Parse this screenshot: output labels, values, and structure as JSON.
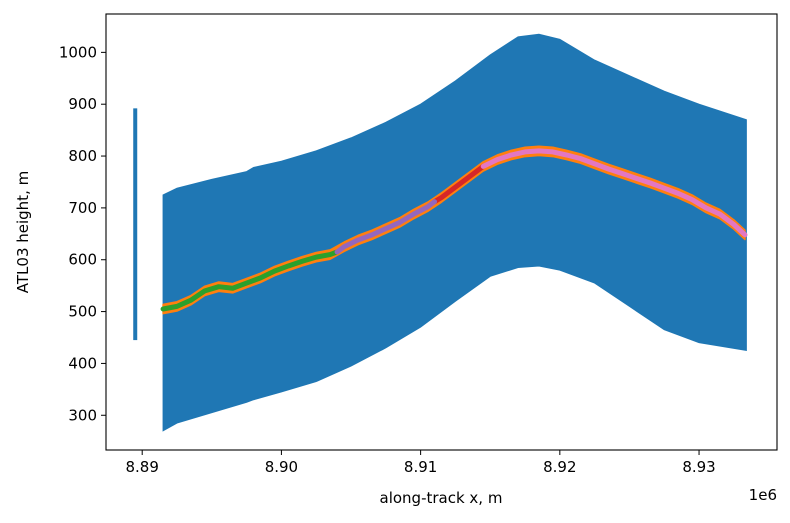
{
  "chart_data": {
    "type": "scatter",
    "title": "",
    "xlabel": "along-track x, m",
    "ylabel": "ATL03 height, m",
    "x_offset_label": "1e6",
    "xlim": [
      8.8874,
      8.9356
    ],
    "ylim": [
      233,
      1074
    ],
    "x_ticks": [
      8.89,
      8.9,
      8.91,
      8.92,
      8.93
    ],
    "x_tick_labels": [
      "8.89",
      "8.90",
      "8.91",
      "8.92",
      "8.93"
    ],
    "y_ticks": [
      300,
      400,
      500,
      600,
      700,
      800,
      900,
      1000
    ],
    "y_tick_labels": [
      "300",
      "400",
      "500",
      "600",
      "700",
      "800",
      "900",
      "1000"
    ],
    "grid": false,
    "legend": false,
    "series": [
      {
        "color": "#1f77b4",
        "kind": "photon-cloud",
        "x": [
          8.8915,
          8.8925,
          8.895,
          8.8975,
          8.898,
          8.9,
          8.9025,
          8.905,
          8.9075,
          8.91,
          8.9125,
          8.915,
          8.917,
          8.9185,
          8.92,
          8.9225,
          8.925,
          8.9275,
          8.93,
          8.9334
        ],
        "upper": [
          725,
          738,
          755,
          770,
          778,
          790,
          810,
          835,
          865,
          900,
          945,
          995,
          1030,
          1035,
          1025,
          985,
          955,
          925,
          900,
          870
        ],
        "lower": [
          270,
          285,
          305,
          325,
          330,
          345,
          365,
          395,
          430,
          470,
          520,
          568,
          585,
          588,
          580,
          555,
          510,
          465,
          440,
          425
        ]
      },
      {
        "color": "#1f77b4",
        "kind": "isolated-strip",
        "x": [
          8.8895
        ],
        "upper": [
          892
        ],
        "lower": [
          445
        ]
      },
      {
        "color": "#ff7f0e",
        "kind": "surface-band",
        "x": [
          8.8915,
          8.8925,
          8.8935,
          8.8945,
          8.8955,
          8.8965,
          8.8975,
          8.8985,
          8.8995,
          8.9005,
          8.9015,
          8.9025,
          8.9035,
          8.9045,
          8.9055,
          8.9065,
          8.9075,
          8.9085,
          8.9095,
          8.9105,
          8.9115,
          8.9125,
          8.9135,
          8.9145,
          8.9155,
          8.9165,
          8.9175,
          8.9185,
          8.9195,
          8.9205,
          8.9215,
          8.9225,
          8.9235,
          8.9245,
          8.9255,
          8.9265,
          8.9275,
          8.9285,
          8.9295,
          8.9305,
          8.9315,
          8.9325,
          8.9333
        ],
        "y": [
          505,
          510,
          522,
          540,
          548,
          545,
          555,
          565,
          578,
          588,
          597,
          605,
          610,
          625,
          638,
          648,
          660,
          672,
          688,
          702,
          720,
          740,
          760,
          780,
          793,
          802,
          808,
          810,
          808,
          802,
          795,
          785,
          775,
          766,
          757,
          748,
          738,
          728,
          716,
          700,
          688,
          668,
          648
        ],
        "halfwidth": 9
      },
      {
        "color": "#2ca02c",
        "kind": "segment",
        "x": [
          8.8915,
          8.8925,
          8.8935,
          8.8945,
          8.8955,
          8.8965,
          8.8975,
          8.8985,
          8.8995,
          8.9005,
          8.9015,
          8.9025,
          8.9035,
          8.904
        ],
        "y": [
          505,
          510,
          522,
          540,
          548,
          545,
          555,
          565,
          578,
          588,
          597,
          605,
          610,
          615
        ]
      },
      {
        "color": "#d62728",
        "kind": "segment",
        "x": [
          8.911,
          8.9115,
          8.9125,
          8.9135,
          8.9145
        ],
        "y": [
          712,
          720,
          740,
          760,
          780
        ]
      },
      {
        "color": "#9467bd",
        "kind": "segment",
        "x": [
          8.904,
          8.9045,
          8.9055,
          8.9065,
          8.9075,
          8.9085,
          8.9095,
          8.9105,
          8.911
        ],
        "y": [
          615,
          625,
          638,
          648,
          660,
          672,
          688,
          702,
          712
        ]
      },
      {
        "color": "#e377c2",
        "kind": "segment",
        "x": [
          8.9145,
          8.9155,
          8.9165,
          8.9175,
          8.9185,
          8.9195,
          8.9205,
          8.9215,
          8.9225,
          8.9235,
          8.9245,
          8.9255,
          8.9265,
          8.9275,
          8.9285,
          8.9295,
          8.9305,
          8.9315,
          8.9325,
          8.9333
        ],
        "y": [
          780,
          793,
          802,
          808,
          810,
          808,
          802,
          795,
          785,
          775,
          766,
          757,
          748,
          738,
          728,
          716,
          700,
          688,
          668,
          648
        ]
      }
    ]
  }
}
